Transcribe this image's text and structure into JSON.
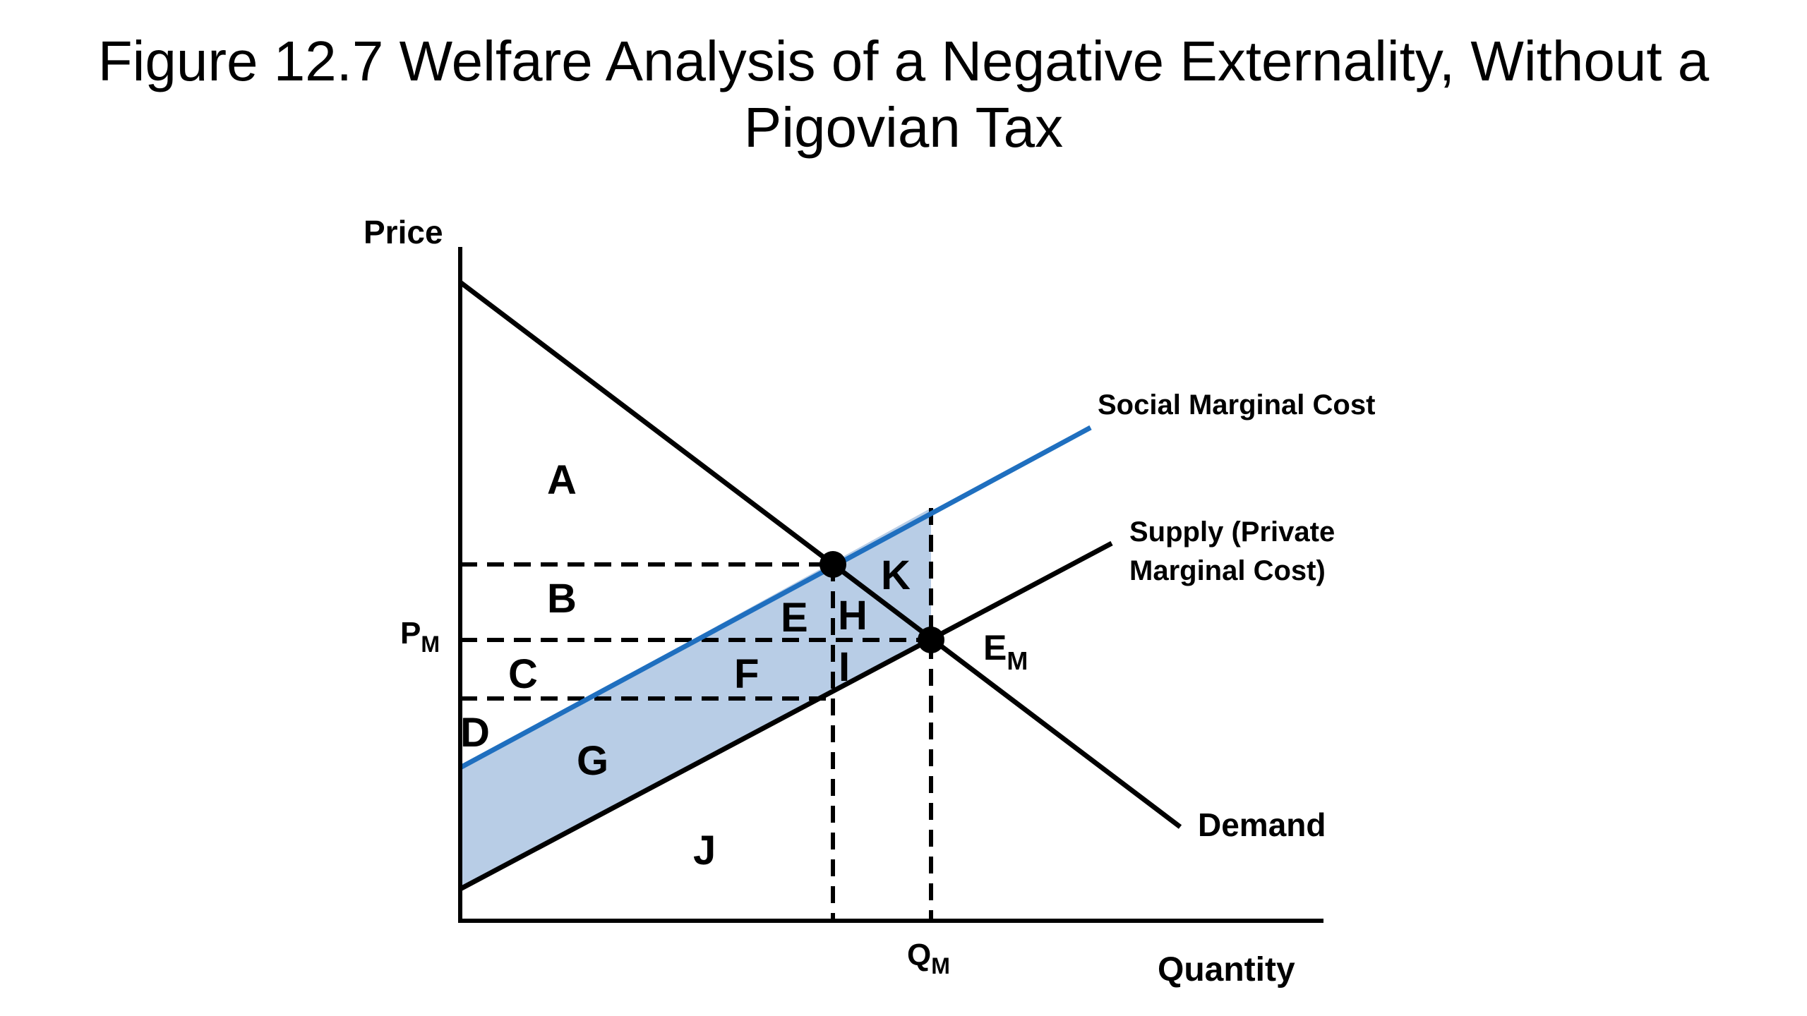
{
  "title": {
    "line1": "Figure 12.7 Welfare Analysis of a Negative Externality, Without a",
    "line2": "Pigovian Tax"
  },
  "axes": {
    "y_label": "Price",
    "x_label": "Quantity"
  },
  "curves": {
    "smc_label": "Social Marginal Cost",
    "supply_label_line1": "Supply (Private",
    "supply_label_line2": "Marginal Cost)",
    "demand_label": "Demand"
  },
  "markers": {
    "pm": "P",
    "pm_sub": "M",
    "qm": "Q",
    "qm_sub": "M",
    "em": "E",
    "em_sub": "M"
  },
  "areas": {
    "A": "A",
    "B": "B",
    "C": "C",
    "D": "D",
    "E": "E",
    "F": "F",
    "G": "G",
    "H": "H",
    "I": "I",
    "J": "J",
    "K": "K"
  },
  "colors": {
    "smc_line": "#1f6fbf",
    "shade": "#b8cde6",
    "ink": "#000000"
  }
}
